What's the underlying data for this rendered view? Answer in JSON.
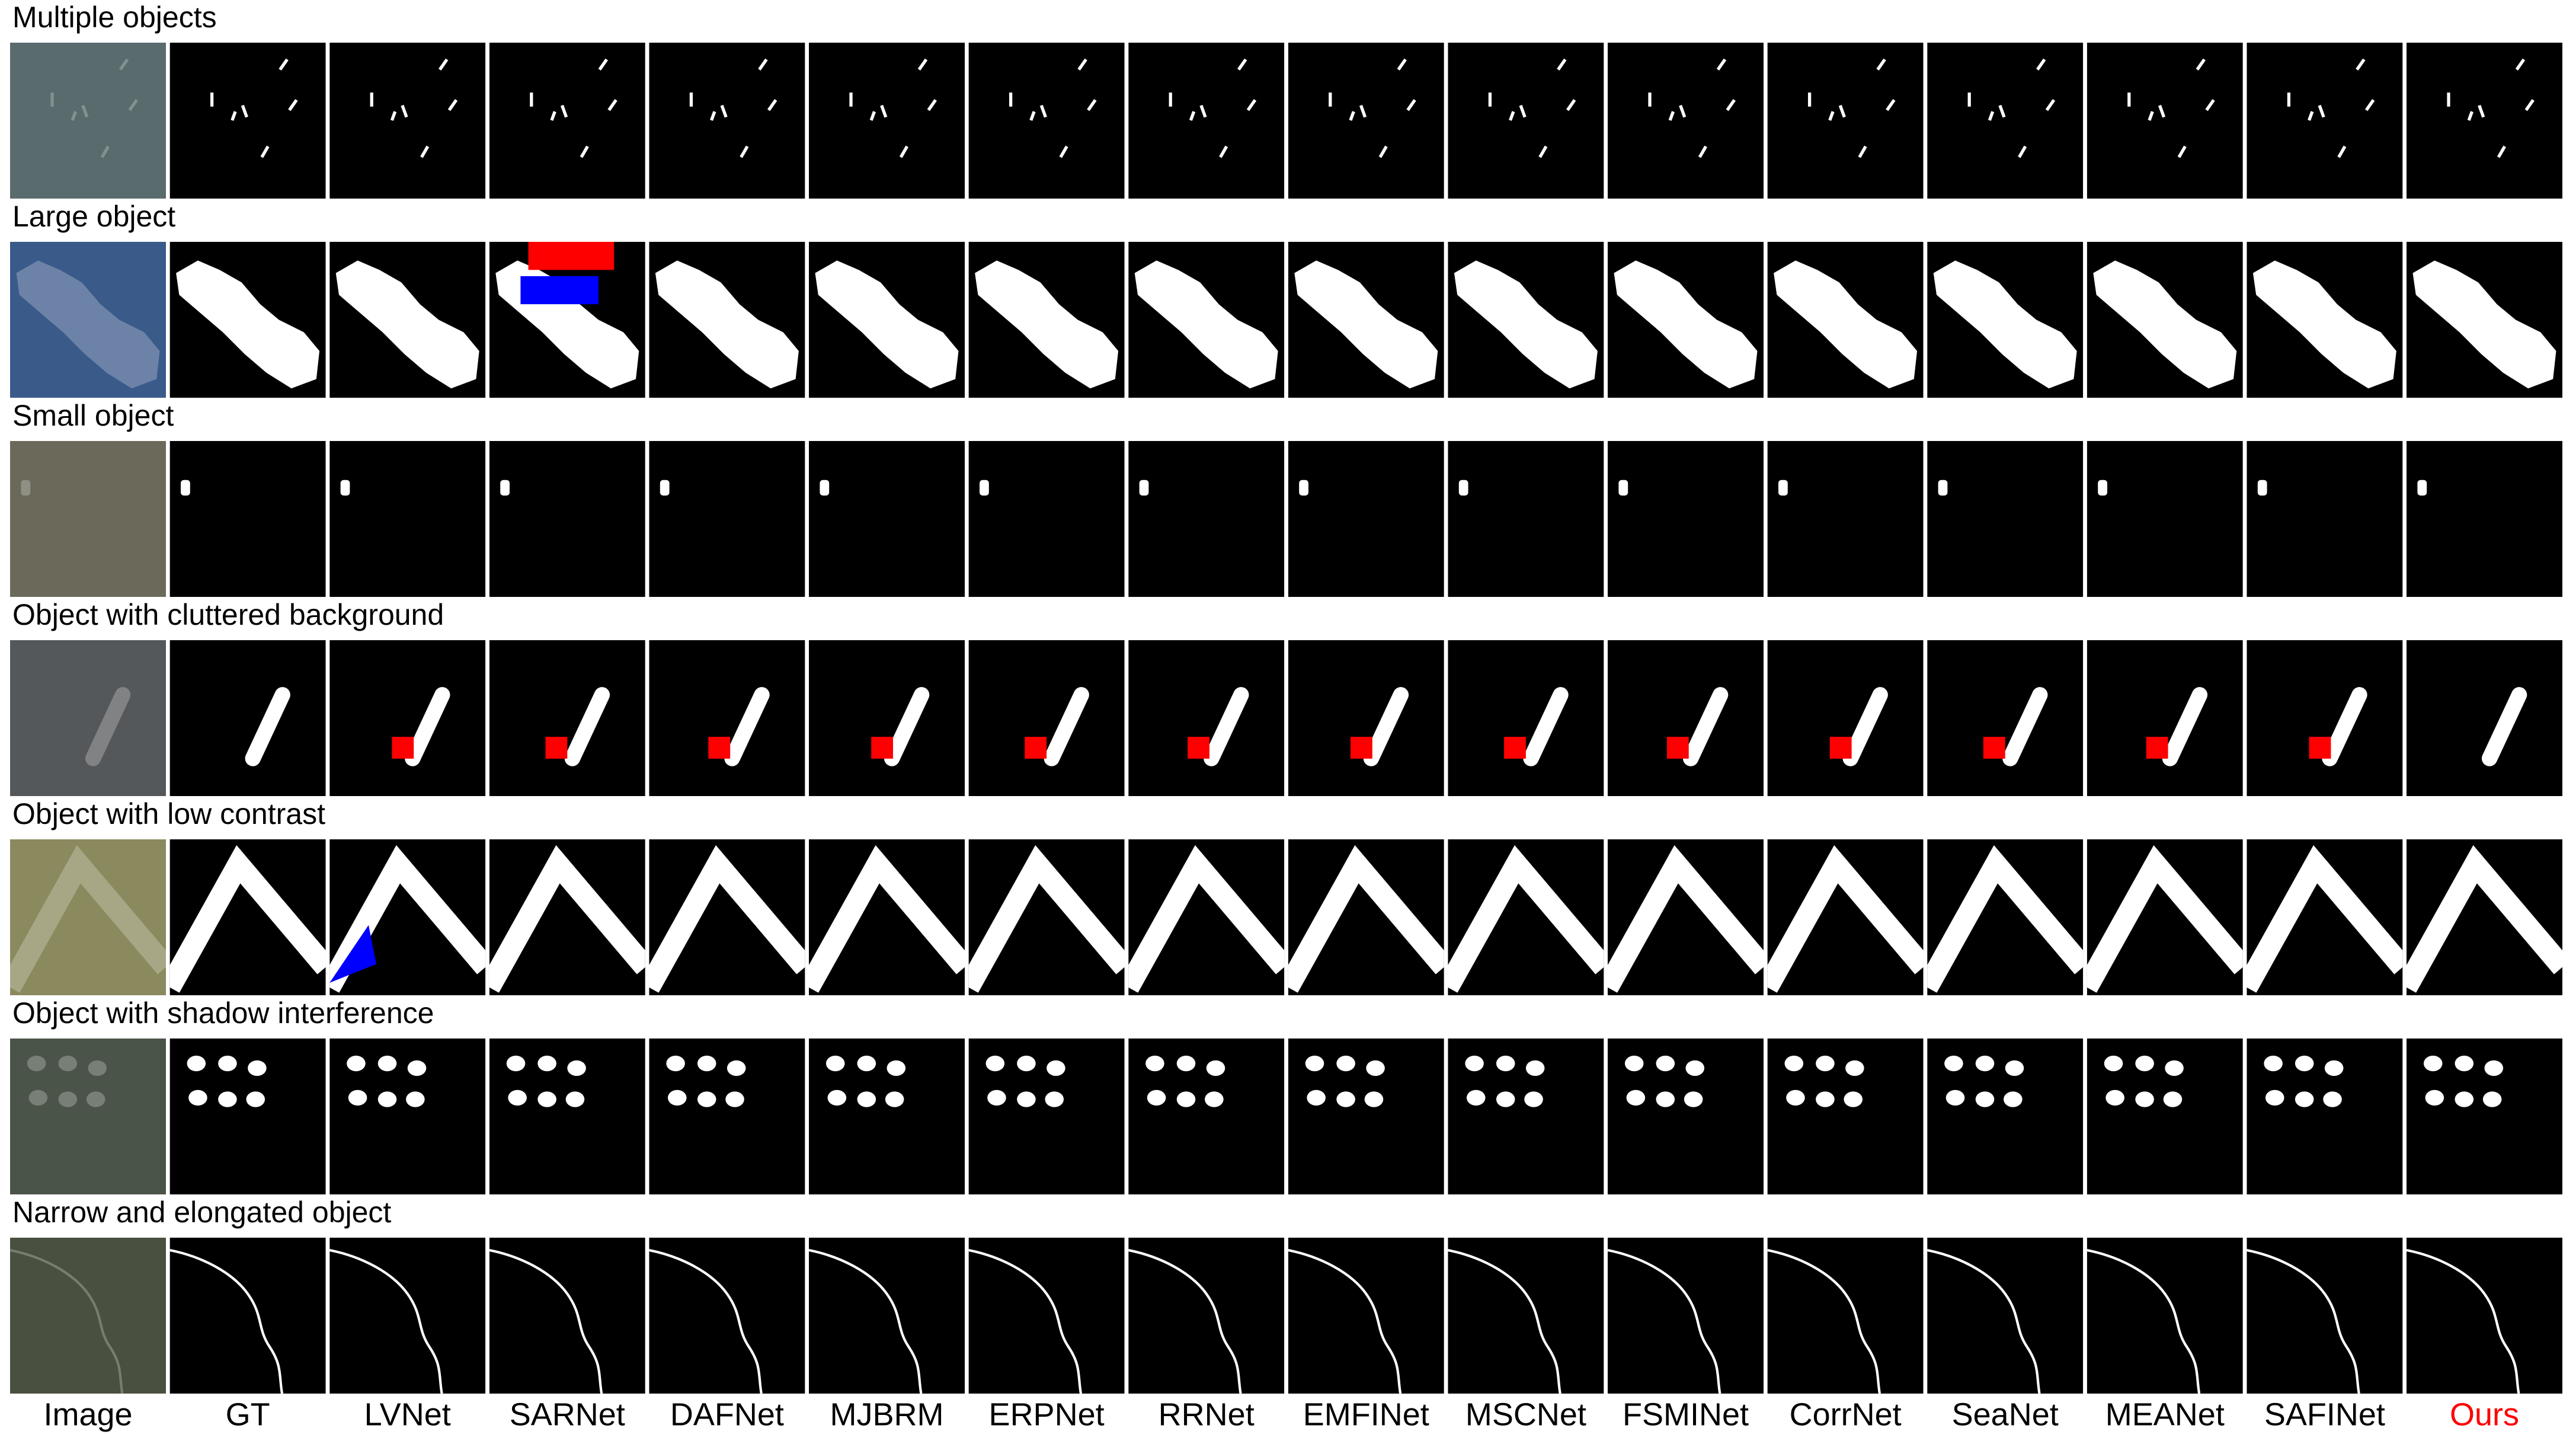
{
  "rows": [
    {
      "label": "Multiple objects"
    },
    {
      "label": "Large object"
    },
    {
      "label": "Small object"
    },
    {
      "label": "Object with cluttered background"
    },
    {
      "label": "Object with low contrast"
    },
    {
      "label": "Object with shadow interference"
    },
    {
      "label": "Narrow and elongated object"
    }
  ],
  "columns": [
    "Image",
    "GT",
    "LVNet",
    "SARNet",
    "DAFNet",
    "MJBRM",
    "ERPNet",
    "RRNet",
    "EMFINet",
    "MSCNet",
    "FSMINet",
    "CorrNet",
    "SeaNet",
    "MEANet",
    "SAFINet",
    "Ours"
  ]
}
